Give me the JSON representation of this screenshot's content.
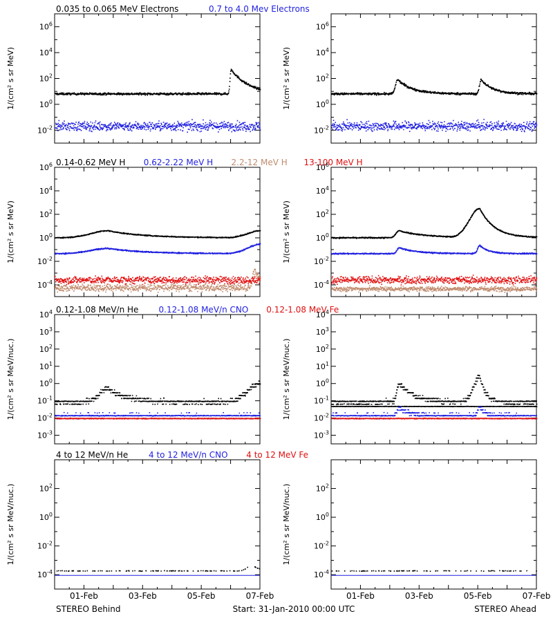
{
  "colors": {
    "black": "#000000",
    "blue": "#1f1fe0",
    "tan": "#c08b6e",
    "red": "#e01010"
  },
  "footer": {
    "left": "STEREO Behind",
    "center": "Start: 31-Jan-2010 00:00 UTC",
    "right": "STEREO Ahead"
  },
  "chart_data": [
    {
      "type": "scatter",
      "row": 1,
      "ylabel": "1/(cm² s sr MeV)",
      "yscale": "log",
      "ylim_exp": [
        -3,
        7
      ],
      "ytick_exp": [
        -2,
        0,
        2,
        4,
        6
      ],
      "xlim_days": [
        0,
        7
      ],
      "xticks": [
        "01-Feb",
        "03-Feb",
        "05-Feb",
        "07-Feb"
      ],
      "legend": [
        {
          "text": "0.035 to 0.065 MeV Electrons",
          "color": "black"
        },
        {
          "text": "0.7 to 4.0 Mev Electrons",
          "color": "blue"
        }
      ],
      "panels": [
        {
          "spacecraft": "STEREO Behind",
          "series": [
            {
              "color": "black",
              "base_exp": 0.85,
              "scatter": 0.08,
              "events": [
                {
                  "day": 6.0,
                  "amp": 1.9,
                  "rise": 0.05,
                  "decay": 0.6
                }
              ]
            },
            {
              "color": "blue",
              "base_exp": -1.65,
              "scatter": 0.35
            }
          ]
        },
        {
          "spacecraft": "STEREO Ahead",
          "series": [
            {
              "color": "black",
              "base_exp": 0.85,
              "scatter": 0.08,
              "events": [
                {
                  "day": 2.25,
                  "amp": 1.1,
                  "rise": 0.1,
                  "decay": 0.5
                },
                {
                  "day": 5.1,
                  "amp": 1.1,
                  "rise": 0.08,
                  "decay": 0.4
                }
              ]
            },
            {
              "color": "blue",
              "base_exp": -1.65,
              "scatter": 0.35
            }
          ]
        }
      ]
    },
    {
      "type": "scatter",
      "row": 2,
      "ylabel": "1/(cm² s sr MeV)",
      "yscale": "log",
      "ylim_exp": [
        -5,
        6
      ],
      "ytick_exp": [
        -4,
        -2,
        0,
        2,
        4,
        6
      ],
      "xlim_days": [
        0,
        7
      ],
      "xticks": [
        "01-Feb",
        "03-Feb",
        "05-Feb",
        "07-Feb"
      ],
      "legend": [
        {
          "text": "0.14-0.62 MeV H",
          "color": "black"
        },
        {
          "text": "0.62-2.22 MeV H",
          "color": "blue"
        },
        {
          "text": "2.2-12 MeV H",
          "color": "tan"
        },
        {
          "text": "13-100 MeV H",
          "color": "red"
        }
      ],
      "panels": [
        {
          "spacecraft": "STEREO Behind",
          "series": [
            {
              "color": "black",
              "base_exp": 0.05,
              "scatter": 0.04,
              "events": [
                {
                  "day": 1.8,
                  "amp": 0.6,
                  "rise": 0.8,
                  "decay": 1.2
                },
                {
                  "day": 7.0,
                  "amp": 0.6,
                  "rise": 0.6,
                  "decay": 0.1
                }
              ]
            },
            {
              "color": "blue",
              "base_exp": -1.3,
              "scatter": 0.05,
              "events": [
                {
                  "day": 1.8,
                  "amp": 0.45,
                  "rise": 0.8,
                  "decay": 1.2
                },
                {
                  "day": 7.0,
                  "amp": 0.8,
                  "rise": 0.6,
                  "decay": 0.1
                }
              ]
            },
            {
              "color": "tan",
              "base_exp": -4.2,
              "scatter": 0.3,
              "events": [
                {
                  "day": 6.8,
                  "amp": 1.4,
                  "rise": 0.1,
                  "decay": 0.3
                }
              ]
            },
            {
              "color": "red",
              "base_exp": -3.55,
              "scatter": 0.3
            }
          ]
        },
        {
          "spacecraft": "STEREO Ahead",
          "series": [
            {
              "color": "black",
              "base_exp": 0.05,
              "scatter": 0.05,
              "events": [
                {
                  "day": 2.3,
                  "amp": 0.6,
                  "rise": 0.15,
                  "decay": 0.9
                },
                {
                  "day": 5.05,
                  "amp": 2.5,
                  "rise": 0.5,
                  "decay": 0.5
                }
              ]
            },
            {
              "color": "blue",
              "base_exp": -1.3,
              "scatter": 0.05,
              "events": [
                {
                  "day": 2.3,
                  "amp": 0.5,
                  "rise": 0.1,
                  "decay": 0.6
                },
                {
                  "day": 5.05,
                  "amp": 0.7,
                  "rise": 0.1,
                  "decay": 0.3
                }
              ]
            },
            {
              "color": "tan",
              "base_exp": -4.3,
              "scatter": 0.2
            },
            {
              "color": "red",
              "base_exp": -3.55,
              "scatter": 0.3
            }
          ]
        }
      ]
    },
    {
      "type": "scatter",
      "row": 3,
      "ylabel": "1/(cm² s sr MeV/nuc.)",
      "yscale": "log",
      "ylim_exp": [
        -3.5,
        4
      ],
      "ytick_exp": [
        -3,
        -2,
        -1,
        0,
        1,
        2,
        3,
        4
      ],
      "xlim_days": [
        0,
        7
      ],
      "xticks": [
        "01-Feb",
        "03-Feb",
        "05-Feb",
        "07-Feb"
      ],
      "legend": [
        {
          "text": "0.12-1.08 MeV/n He",
          "color": "black"
        },
        {
          "text": "0.12-1.08 MeV/n CNO",
          "color": "blue"
        },
        {
          "text": "0.12-1.08 MeV Fe",
          "color": "red"
        }
      ],
      "panels": [
        {
          "spacecraft": "STEREO Behind",
          "series": [
            {
              "color": "black",
              "base_exp": -1.05,
              "scatter": 0.12,
              "quant": true,
              "events": [
                {
                  "day": 1.8,
                  "amp": 0.8,
                  "rise": 0.4,
                  "decay": 0.6
                },
                {
                  "day": 7.0,
                  "amp": 1.1,
                  "rise": 0.6,
                  "decay": 0.1
                }
              ]
            },
            {
              "color": "blue",
              "base_exp": -1.85,
              "scatter": 0.12,
              "quant": true
            },
            {
              "color": "red",
              "base_exp": -2.0,
              "scatter": 0.02
            }
          ]
        },
        {
          "spacecraft": "STEREO Ahead",
          "series": [
            {
              "color": "black",
              "base_exp": -1.05,
              "scatter": 0.12,
              "quant": true,
              "events": [
                {
                  "day": 2.3,
                  "amp": 1.1,
                  "rise": 0.1,
                  "decay": 0.5
                },
                {
                  "day": 5.05,
                  "amp": 1.5,
                  "rise": 0.3,
                  "decay": 0.2
                }
              ]
            },
            {
              "color": "black",
              "base_exp": -1.3,
              "scatter": 0.01
            },
            {
              "color": "blue",
              "base_exp": -1.85,
              "scatter": 0.12,
              "quant": true,
              "events": [
                {
                  "day": 2.3,
                  "amp": 0.5,
                  "rise": 0.1,
                  "decay": 0.3
                },
                {
                  "day": 5.05,
                  "amp": 0.5,
                  "rise": 0.1,
                  "decay": 0.2
                }
              ]
            },
            {
              "color": "red",
              "base_exp": -2.0,
              "scatter": 0.02
            }
          ]
        }
      ]
    },
    {
      "type": "scatter",
      "row": 4,
      "ylabel": "1/(cm² s sr MeV/nuc.)",
      "yscale": "log",
      "ylim_exp": [
        -5,
        4
      ],
      "ytick_exp": [
        -4,
        -2,
        0,
        2
      ],
      "xlim_days": [
        0,
        7
      ],
      "xticks": [
        "01-Feb",
        "03-Feb",
        "05-Feb",
        "07-Feb"
      ],
      "legend": [
        {
          "text": "4 to 12 MeV/n He",
          "color": "black"
        },
        {
          "text": "4 to 12 MeV/n CNO",
          "color": "blue"
        },
        {
          "text": "4 to 12 MeV Fe",
          "color": "red"
        }
      ],
      "panels": [
        {
          "spacecraft": "STEREO Behind",
          "series": [
            {
              "color": "black",
              "base_exp": -3.7,
              "scatter": 0.02,
              "sparse": 0.15,
              "events": [
                {
                  "day": 6.7,
                  "amp": 0.4,
                  "rise": 0.2,
                  "decay": 0.3
                }
              ]
            },
            {
              "color": "blue",
              "base_exp": -4.05,
              "scatter": 0.0,
              "line": true
            }
          ]
        },
        {
          "spacecraft": "STEREO Ahead",
          "series": [
            {
              "color": "black",
              "base_exp": -3.7,
              "scatter": 0.02,
              "sparse": 0.15
            },
            {
              "color": "blue",
              "base_exp": -4.05,
              "scatter": 0.0,
              "line": true
            }
          ]
        }
      ]
    }
  ]
}
